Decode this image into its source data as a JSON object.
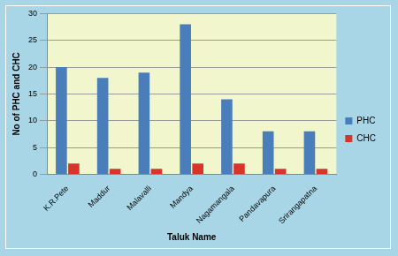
{
  "chart_data": {
    "type": "bar",
    "x_label": "Taluk Name",
    "y_label": "No of PHC and CHC",
    "categories": [
      "K.R.Pete",
      "Maddur",
      "Malavalli",
      "Mandya",
      "Nagamangala",
      "Pandavapura",
      "Srirangapatna"
    ],
    "series": [
      {
        "name": "PHC",
        "color": "#4a7ebb",
        "values": [
          20,
          18,
          19,
          28,
          14,
          8,
          8
        ]
      },
      {
        "name": "CHC",
        "color": "#d9342b",
        "values": [
          2,
          1,
          1,
          2,
          2,
          1,
          1
        ]
      }
    ],
    "ylim": [
      0,
      30
    ],
    "yticks": [
      0,
      5,
      10,
      15,
      20,
      25,
      30
    ],
    "grid": true,
    "legend": "right"
  }
}
